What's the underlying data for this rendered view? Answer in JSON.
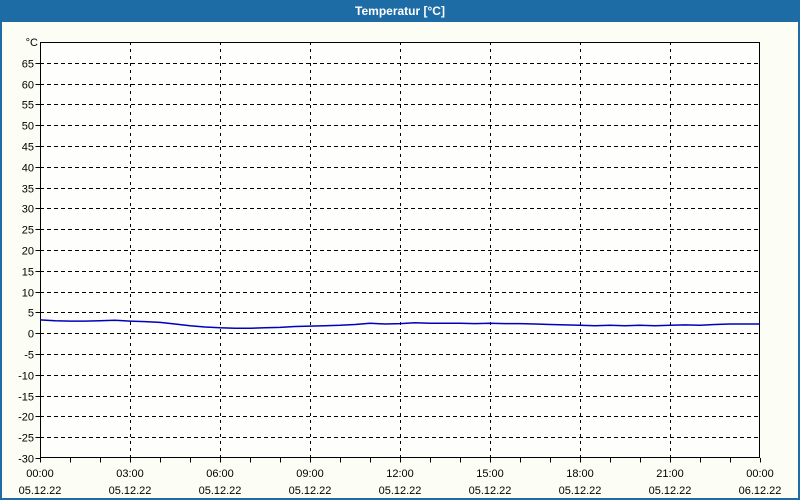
{
  "window": {
    "title": "Temperatur [°C]"
  },
  "colors": {
    "title_bar_bg": "#1e6ca6",
    "title_text": "#ffffff",
    "page_bg": "#fcfdf5",
    "page_border": "#1e6ca6",
    "plot_bg": "#fefefc",
    "axis": "#000000",
    "grid": "#000000",
    "series_line": "#0000bf"
  },
  "chart_data": {
    "type": "line",
    "title": "Temperatur [°C]",
    "y_unit_label": "°C",
    "ylim": [
      -30,
      70
    ],
    "ytick_step": 5,
    "yticks": [
      65,
      60,
      55,
      50,
      45,
      40,
      35,
      30,
      25,
      20,
      15,
      10,
      5,
      0,
      -5,
      -10,
      -15,
      -20,
      -25,
      -30
    ],
    "xlim_hours": [
      0,
      24
    ],
    "x_minor_tick_hours": 1,
    "x_major_tick_hours": 3,
    "grid_style": "dashed",
    "legend": "none",
    "xticks": [
      {
        "hour": 0,
        "time": "00:00",
        "date": "05.12.22"
      },
      {
        "hour": 3,
        "time": "03:00",
        "date": "05.12.22"
      },
      {
        "hour": 6,
        "time": "06:00",
        "date": "05.12.22"
      },
      {
        "hour": 9,
        "time": "09:00",
        "date": "05.12.22"
      },
      {
        "hour": 12,
        "time": "12:00",
        "date": "05.12.22"
      },
      {
        "hour": 15,
        "time": "15:00",
        "date": "05.12.22"
      },
      {
        "hour": 18,
        "time": "18:00",
        "date": "05.12.22"
      },
      {
        "hour": 21,
        "time": "21:00",
        "date": "05.12.22"
      },
      {
        "hour": 24,
        "time": "00:00",
        "date": "06.12.22"
      }
    ],
    "series": [
      {
        "name": "Temperatur",
        "color": "#0000bf",
        "x_hours": [
          0,
          0.5,
          1,
          1.5,
          2,
          2.5,
          3,
          3.5,
          4,
          4.5,
          5,
          5.5,
          6,
          6.5,
          7,
          7.5,
          8,
          8.5,
          9,
          9.5,
          10,
          10.5,
          11,
          11.5,
          12,
          12.5,
          13,
          13.5,
          14,
          14.5,
          15,
          15.5,
          16,
          16.5,
          17,
          17.5,
          18,
          18.5,
          19,
          19.5,
          20,
          20.5,
          21,
          21.5,
          22,
          22.5,
          23,
          23.5,
          24
        ],
        "values_c": [
          3.2,
          3.0,
          2.9,
          2.9,
          3.0,
          3.1,
          2.9,
          2.8,
          2.6,
          2.2,
          1.8,
          1.5,
          1.3,
          1.2,
          1.2,
          1.3,
          1.4,
          1.6,
          1.7,
          1.8,
          1.9,
          2.1,
          2.4,
          2.2,
          2.3,
          2.5,
          2.4,
          2.4,
          2.4,
          2.3,
          2.4,
          2.3,
          2.3,
          2.2,
          2.1,
          2.0,
          1.9,
          1.8,
          1.9,
          1.8,
          1.9,
          1.8,
          1.9,
          2.0,
          1.9,
          2.1,
          2.2,
          2.2,
          2.2
        ]
      }
    ]
  }
}
